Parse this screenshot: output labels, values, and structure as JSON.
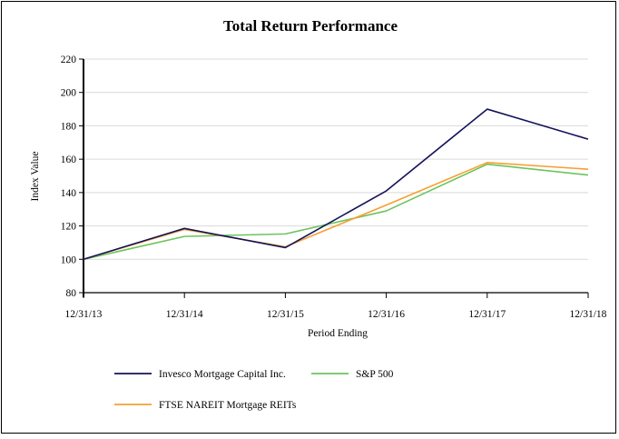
{
  "chart_data": {
    "type": "line",
    "title": "Total Return Performance",
    "xlabel": "Period Ending",
    "ylabel": "Index Value",
    "categories": [
      "12/31/13",
      "12/31/14",
      "12/31/15",
      "12/31/16",
      "12/31/17",
      "12/31/18"
    ],
    "ylim": [
      80,
      220
    ],
    "yticks": [
      80,
      100,
      120,
      140,
      160,
      180,
      200,
      220
    ],
    "grid": true,
    "legend_position": "bottom",
    "series": [
      {
        "name": "Invesco Mortgage Capital Inc.",
        "color": "#14125a",
        "values": [
          100,
          118.5,
          107,
          141,
          190,
          172
        ]
      },
      {
        "name": "S&P 500",
        "color": "#6cc45c",
        "values": [
          100,
          113.7,
          115.2,
          129,
          157,
          150.5
        ]
      },
      {
        "name": "FTSE NAREIT Mortgage REITs",
        "color": "#f5a030",
        "values": [
          100,
          117.9,
          107.5,
          132.5,
          158,
          154
        ]
      }
    ]
  }
}
